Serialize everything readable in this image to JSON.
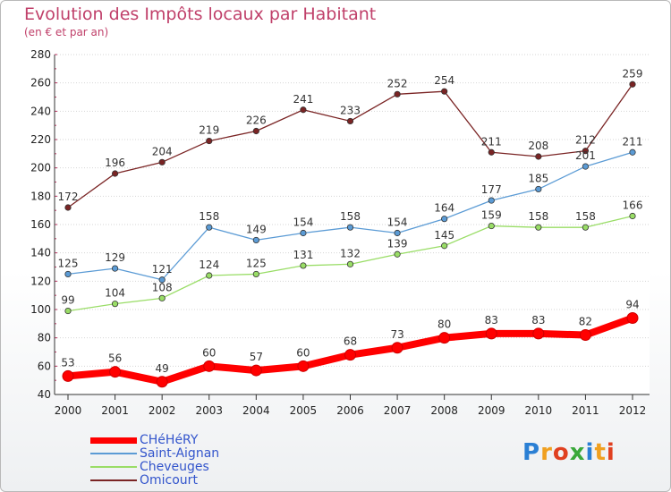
{
  "header": {
    "title": "Evolution des Impôts locaux par Habitant",
    "subtitle": "(en € et par an)"
  },
  "logo": {
    "text": "Proxiti"
  },
  "chart_data": {
    "type": "line",
    "title": "Evolution des Impôts locaux par Habitant",
    "subtitle": "(en € et par an)",
    "xlabel": "",
    "ylabel": "",
    "x": [
      "2000",
      "2001",
      "2002",
      "2003",
      "2004",
      "2005",
      "2006",
      "2007",
      "2008",
      "2009",
      "2010",
      "2011",
      "2012"
    ],
    "ylim": [
      40,
      280
    ],
    "yticks": [
      40,
      60,
      80,
      100,
      120,
      140,
      160,
      180,
      200,
      220,
      240,
      260,
      280
    ],
    "grid": "horizontal",
    "legend_position": "bottom-left",
    "series": [
      {
        "name": "CHéHéRY",
        "color": "#ff0000",
        "values": [
          53,
          56,
          49,
          60,
          57,
          60,
          68,
          73,
          80,
          83,
          83,
          82,
          94
        ]
      },
      {
        "name": "Saint-Aignan",
        "color": "#5b9bd5",
        "values": [
          125,
          129,
          121,
          158,
          149,
          154,
          158,
          154,
          164,
          177,
          185,
          201,
          211
        ]
      },
      {
        "name": "Cheveuges",
        "color": "#99dd66",
        "values": [
          99,
          104,
          108,
          124,
          125,
          131,
          132,
          139,
          145,
          159,
          158,
          158,
          166
        ]
      },
      {
        "name": "Omicourt",
        "color": "#7a2424",
        "values": [
          172,
          196,
          204,
          219,
          226,
          241,
          233,
          252,
          254,
          211,
          208,
          212,
          259
        ]
      }
    ]
  }
}
